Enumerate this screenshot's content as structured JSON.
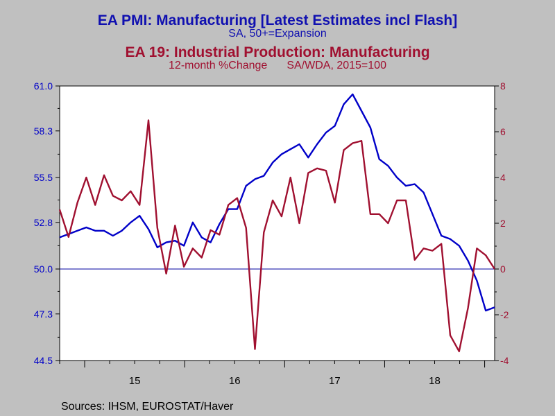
{
  "chart_data": {
    "type": "line",
    "title_left": "EA PMI: Manufacturing [Latest Estimates incl Flash]",
    "subtitle_left": "SA, 50+=Expansion",
    "title_right": "EA 19: Industrial Production: Manufacturing",
    "subtitle_right_a": "12-month %Change",
    "subtitle_right_b": "SA/WDA, 2015=100",
    "sources": "Sources:  IHSM, EUROSTAT/Haver",
    "x_tick_labels": [
      "15",
      "16",
      "17",
      "18"
    ],
    "left_axis": {
      "ticks": [
        "61.0",
        "58.3",
        "55.5",
        "52.8",
        "50.0",
        "47.3",
        "44.5"
      ],
      "range": [
        44.5,
        61.0
      ]
    },
    "right_axis": {
      "ticks": [
        "8",
        "6",
        "4",
        "2",
        "0",
        "-2",
        "-4"
      ],
      "range": [
        -4,
        8
      ]
    },
    "reference_line": 50.0,
    "colors": {
      "pmi": "#0000c8",
      "ip": "#a01030",
      "plot_bg": "#ffffff",
      "page_bg": "#c0c0c0",
      "ref": "#0000a0"
    },
    "series": [
      {
        "axis": "left",
        "values": [
          51.9,
          52.1,
          52.3,
          52.5,
          52.3,
          52.3,
          52.0,
          52.3,
          52.8,
          53.2,
          52.4,
          51.3,
          51.6,
          51.7,
          51.4,
          52.8,
          51.9,
          51.6,
          52.7,
          53.6,
          53.6,
          55.0,
          55.4,
          55.6,
          56.4,
          56.9,
          57.2,
          57.5,
          56.7,
          57.5,
          58.2,
          58.6,
          59.9,
          60.5,
          59.5,
          58.5,
          56.6,
          56.2,
          55.5,
          55.0,
          55.1,
          54.6,
          53.3,
          52.0,
          51.8,
          51.4,
          50.5,
          49.3,
          47.5,
          47.7
        ]
      },
      {
        "axis": "right",
        "values": [
          2.6,
          1.4,
          2.9,
          4.0,
          2.8,
          4.1,
          3.2,
          3.0,
          3.4,
          2.8,
          6.5,
          1.8,
          -0.2,
          1.9,
          0.1,
          0.9,
          0.5,
          1.7,
          1.5,
          2.8,
          3.1,
          1.8,
          -3.5,
          1.6,
          3.0,
          2.3,
          4.0,
          2.0,
          4.2,
          4.4,
          4.3,
          2.9,
          5.2,
          5.5,
          5.6,
          2.4,
          2.4,
          2.0,
          3.0,
          3.0,
          0.4,
          0.9,
          0.8,
          1.1,
          -2.9,
          -3.6,
          -1.7,
          0.9,
          0.6,
          0.0
        ]
      }
    ]
  }
}
